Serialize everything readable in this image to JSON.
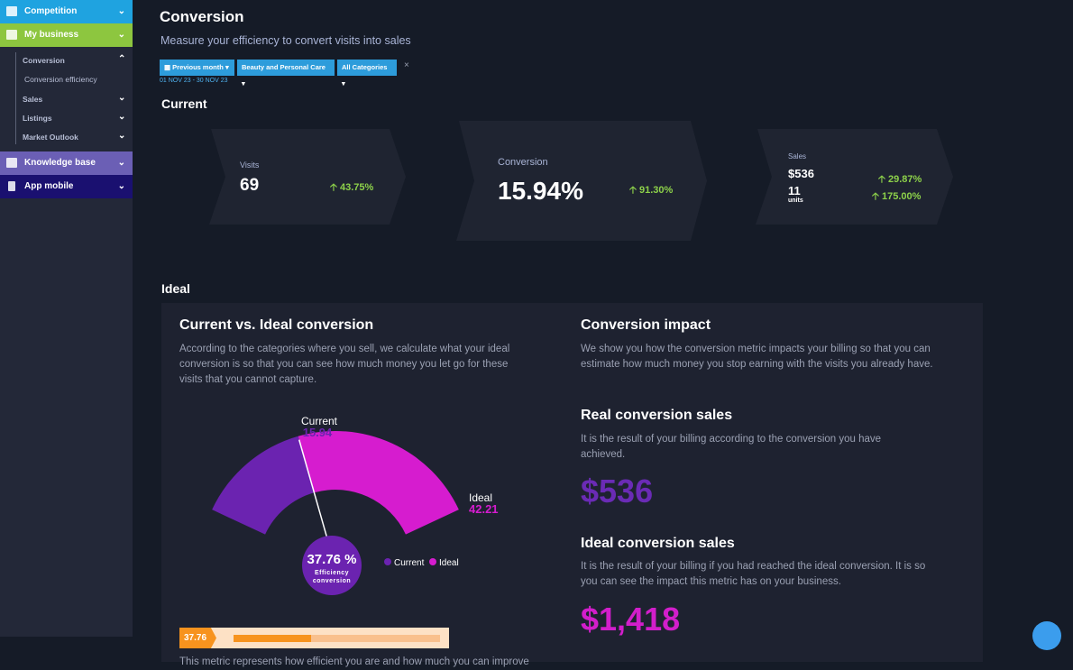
{
  "sidebar": {
    "items": [
      "Competition",
      "My business",
      "Knowledge base",
      "App mobile"
    ],
    "subitems": [
      "Conversion",
      "Conversion efficiency",
      "Sales",
      "Listings",
      "Market Outlook"
    ]
  },
  "header": {
    "title": "Conversion",
    "subtitle": "Measure your efficiency to convert visits into sales",
    "filters": [
      "Previous month",
      "Beauty and Personal Care",
      "All Categories"
    ],
    "date_range": "01 NOV 23 - 30 NOV 23"
  },
  "current": {
    "heading": "Current",
    "visits": {
      "label": "Visits",
      "value": "69",
      "change": "43.75%"
    },
    "conversion": {
      "label": "Conversion",
      "value": "15.94%",
      "change": "91.30%"
    },
    "sales": {
      "label": "Sales",
      "value": "$536",
      "change": "29.87%",
      "units_value": "11",
      "units_label": "units",
      "units_change": "175.00%"
    }
  },
  "ideal": {
    "heading": "Ideal",
    "left": {
      "title": "Current vs. Ideal conversion",
      "text": "According to the categories where you sell, we calculate what your ideal conversion is so that you can see how much money you let go for these visits that you cannot capture.",
      "gauge": {
        "current_label": "Current",
        "current": 15.94,
        "ideal_label": "Ideal",
        "ideal": 42.21,
        "efficiency": {
          "value": 37.76,
          "label": "37.76 %"
        },
        "efficiency_caption": "Efficiency conversion"
      },
      "footer": "This metric represents how efficient you are and how much you can improve"
    },
    "right": {
      "title": "Conversion impact",
      "text": "We show you how the conversion metric impacts your billing so that you can estimate how much money you stop earning with the visits you already have.",
      "real_title": "Real conversion sales",
      "real_text": "It is the result of your billing according to the conversion you have achieved.",
      "real_value": "$536",
      "ideal_title": "Ideal conversion sales",
      "ideal_text": "It is the result of your billing if you had reached the ideal conversion. It is so you can see the impact this metric has on your business.",
      "ideal_value": "$1,418"
    }
  }
}
